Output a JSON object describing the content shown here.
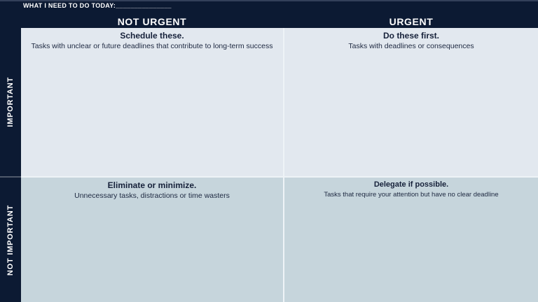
{
  "title": {
    "label": "WHAT I NEED TO DO TODAY:",
    "blank": "_______________"
  },
  "columns": [
    {
      "label": "NOT URGENT"
    },
    {
      "label": "URGENT"
    }
  ],
  "rows": [
    {
      "label": "IMPORTANT"
    },
    {
      "label": "NOT IMPORTANT"
    }
  ],
  "quadrants": {
    "top_left": {
      "heading": "Schedule these.",
      "description": "Tasks with unclear or future deadlines that contribute to long-term success"
    },
    "top_right": {
      "heading": "Do these first.",
      "description": "Tasks with deadlines or consequences"
    },
    "bottom_left": {
      "heading": "Eliminate or minimize.",
      "description": "Unnecessary tasks, distractions or time wasters"
    },
    "bottom_right": {
      "heading": "Delegate if possible.",
      "description": "Tasks that require your attention but have no clear deadline"
    }
  },
  "colors": {
    "background_navy": "#0c1a33",
    "quadrant_top": "#e2e8ef",
    "quadrant_bottom": "#c6d5dc",
    "divider": "#eef3f7",
    "text_dark": "#16213a",
    "text_light": "#ffffff"
  }
}
